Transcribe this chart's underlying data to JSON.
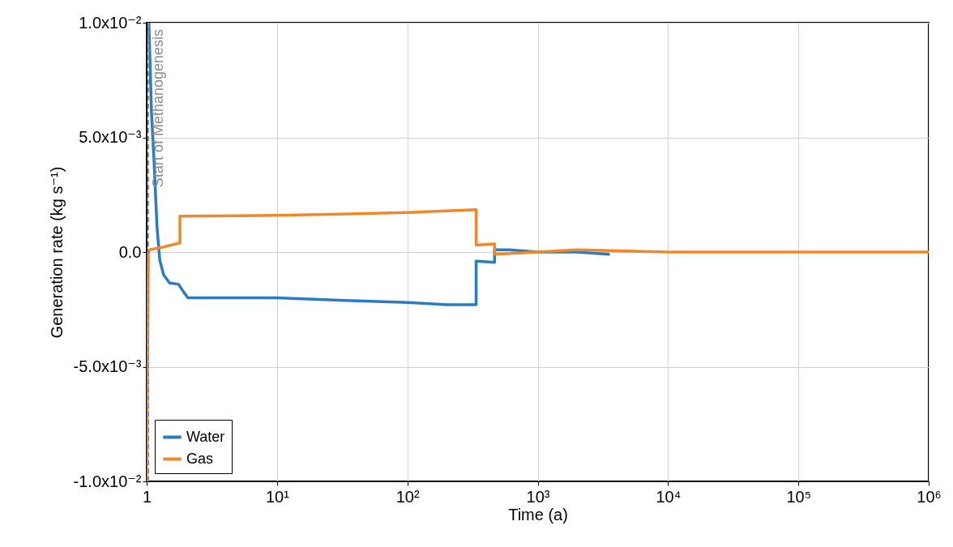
{
  "chart_data": {
    "type": "line",
    "xlabel": "Time  (a)",
    "ylabel": "Generation  rate  (kg  s⁻¹)",
    "log": "x",
    "xlim": [
      1,
      1000000
    ],
    "ylim": [
      -0.01,
      0.01
    ],
    "xticks": [
      1,
      {
        "value": 10,
        "label": "10¹"
      },
      {
        "value": 100,
        "label": "10²"
      },
      {
        "value": 1000,
        "label": "10³"
      },
      {
        "value": 10000,
        "label": "10⁴"
      },
      {
        "value": 100000,
        "label": "10⁵"
      },
      {
        "value": 1000000,
        "label": "10⁶"
      }
    ],
    "yticks": [
      {
        "value": -0.01,
        "label": "-1.0x10⁻²"
      },
      {
        "value": -0.005,
        "label": "-5.0x10⁻³"
      },
      {
        "value": 0,
        "label": "0.0"
      },
      {
        "value": 0.005,
        "label": "5.0x10⁻³"
      },
      {
        "value": 0.01,
        "label": "1.0x10⁻²"
      }
    ],
    "grid": true,
    "legend": "bottom left",
    "line_style": "solid",
    "series": [
      {
        "name": "Water",
        "color": "#2a7bc4",
        "x": [
          1.04,
          1.09,
          1.14,
          1.2,
          1.26,
          1.35,
          1.5,
          1.75,
          1.9,
          2.07,
          5,
          10,
          30,
          100,
          200,
          337,
          337,
          467,
          467,
          600,
          1000,
          2000,
          3500
        ],
        "values": [
          0.01,
          0.006,
          0.0039,
          0.0011,
          -0.00035,
          -0.001,
          -0.00135,
          -0.0014,
          -0.0017,
          -0.002,
          -0.002,
          -0.002,
          -0.0021,
          -0.0022,
          -0.0023,
          -0.0023,
          -0.0004,
          -0.00045,
          0.0001,
          0.0001,
          0,
          0,
          -0.0001
        ]
      },
      {
        "name": "Gas",
        "color": "#f0882a",
        "x": [
          1,
          1.03,
          1.05,
          1.3,
          1.8,
          1.8,
          5,
          10,
          30,
          100,
          337,
          337,
          467,
          467,
          1000,
          2000,
          10000,
          100000,
          1000000
        ],
        "values": [
          -0.01,
          0,
          0.0001,
          0.0002,
          0.0004,
          0.00156,
          0.00158,
          0.0016,
          0.00165,
          0.00172,
          0.00185,
          0.0003,
          0.00035,
          -0.0001,
          0,
          0.0001,
          0,
          0,
          0
        ]
      }
    ],
    "ref_lines": [
      {
        "axis": "x",
        "value": 1.03,
        "label": "Start of Methanogenesis",
        "color": "#8c8c8c",
        "line_style": "dashed"
      }
    ]
  }
}
